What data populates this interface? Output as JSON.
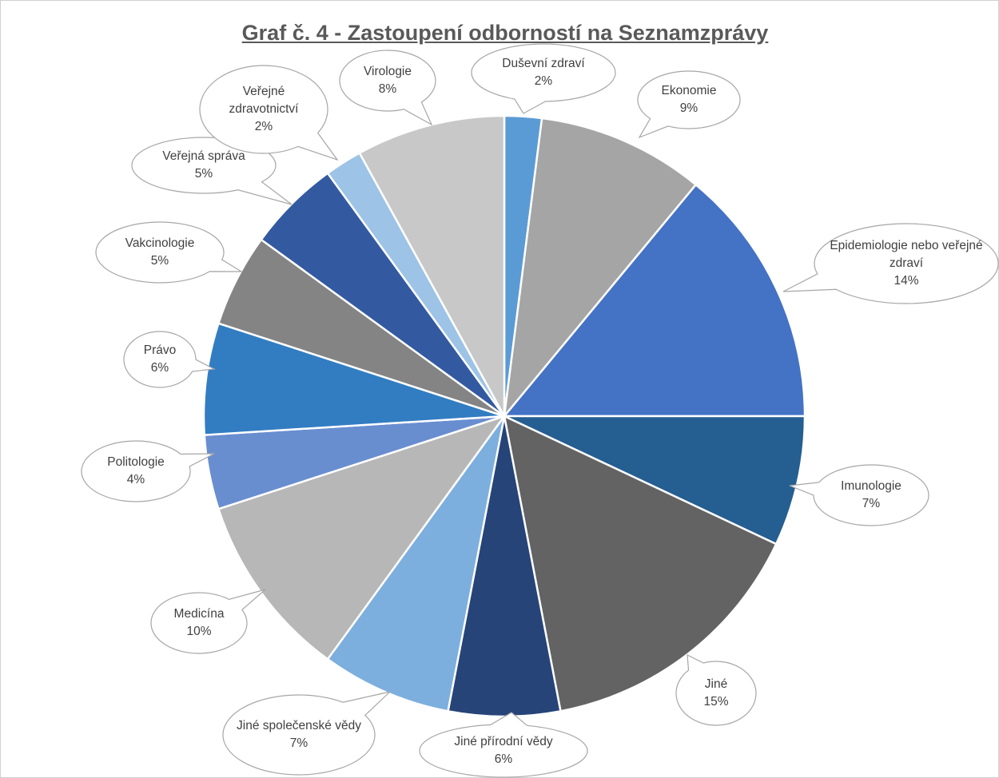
{
  "chart_data": {
    "type": "pie",
    "title": "Graf č. 4 - Zastoupení odborností na Seznamzprávy",
    "categories": [
      "Duševní zdraví",
      "Ekonomie",
      "Epidemiologie nebo veřejné zdraví",
      "Imunologie",
      "Jiné",
      "Jiné přírodní vědy",
      "Jiné společenské vědy",
      "Medicína",
      "Politologie",
      "Právo",
      "Vakcinologie",
      "Veřejná správa",
      "Veřejné zdravotnictví",
      "Virologie"
    ],
    "values": [
      2,
      9,
      14,
      7,
      15,
      6,
      7,
      10,
      4,
      6,
      5,
      5,
      2,
      8
    ],
    "value_labels": [
      "2%",
      "9%",
      "14%",
      "7%",
      "15%",
      "6%",
      "7%",
      "10%",
      "4%",
      "6%",
      "5%",
      "5%",
      "2%",
      "8%"
    ],
    "colors": [
      "#5b9bd5",
      "#a5a5a5",
      "#4472c4",
      "#255e91",
      "#636363",
      "#264478",
      "#7cafdd",
      "#b7b7b7",
      "#698ed0",
      "#327dc2",
      "#848484",
      "#335aa1",
      "#9dc3e6",
      "#c8c8c8"
    ]
  }
}
